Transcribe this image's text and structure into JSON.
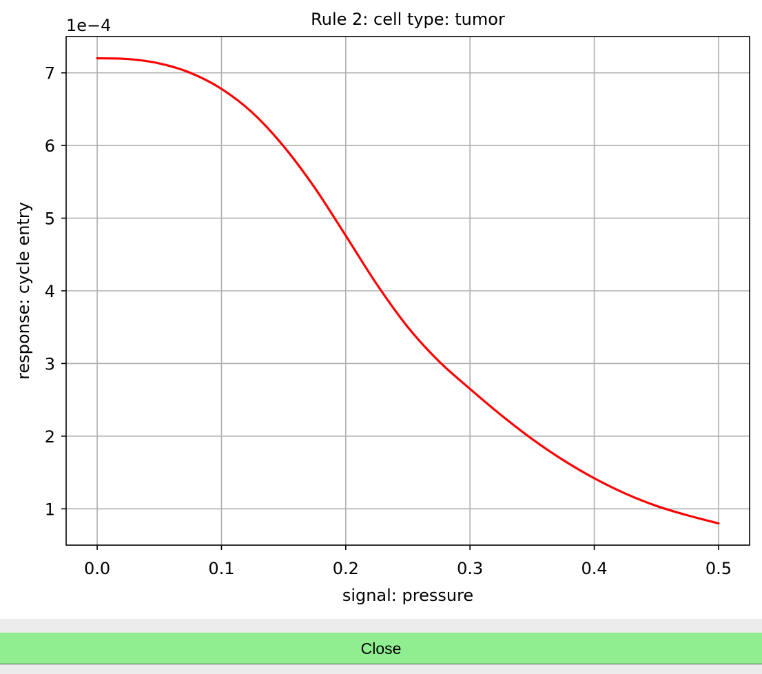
{
  "chart_data": {
    "type": "line",
    "title": "Rule 2: cell type: tumor",
    "xlabel": "signal: pressure",
    "ylabel": "response: cycle entry",
    "y_offset_label": "1e−4",
    "y_scale_multiplier": 0.0001,
    "xlim": [
      -0.025,
      0.525
    ],
    "ylim": [
      0.5,
      7.5
    ],
    "grid": true,
    "x_ticks": [
      0.0,
      0.1,
      0.2,
      0.3,
      0.4,
      0.5
    ],
    "x_tick_labels": [
      "0.0",
      "0.1",
      "0.2",
      "0.3",
      "0.4",
      "0.5"
    ],
    "y_ticks": [
      1,
      2,
      3,
      4,
      5,
      6,
      7
    ],
    "y_tick_labels": [
      "1",
      "2",
      "3",
      "4",
      "5",
      "6",
      "7"
    ],
    "series": [
      {
        "color": "#ff0000",
        "x": [
          0.0,
          0.025,
          0.05,
          0.075,
          0.1,
          0.125,
          0.15,
          0.175,
          0.2,
          0.225,
          0.25,
          0.275,
          0.3,
          0.325,
          0.35,
          0.375,
          0.4,
          0.425,
          0.45,
          0.475,
          0.5
        ],
        "y": [
          7.2,
          7.19,
          7.13,
          7.0,
          6.78,
          6.45,
          5.99,
          5.42,
          4.76,
          4.09,
          3.5,
          3.03,
          2.65,
          2.29,
          1.96,
          1.67,
          1.42,
          1.21,
          1.04,
          0.91,
          0.8
        ]
      }
    ]
  },
  "footer": {
    "close_label": "Close"
  }
}
